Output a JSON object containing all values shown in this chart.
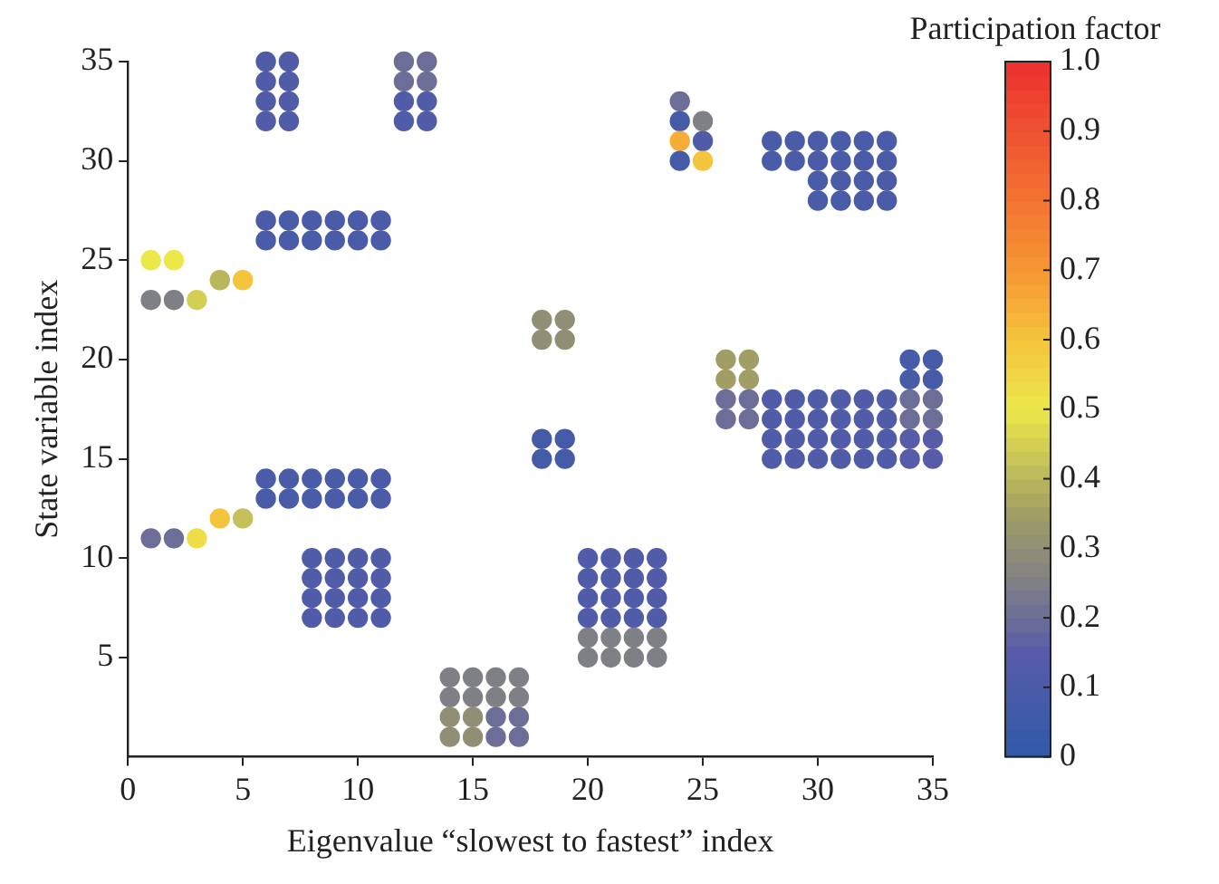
{
  "chart_data": {
    "type": "scatter",
    "xlabel": "Eigenvalue “slowest to fastest” index",
    "ylabel": "State variable index",
    "clabel": "Participation factor",
    "xlim": [
      0,
      35
    ],
    "xticks": [
      0,
      5,
      10,
      15,
      20,
      25,
      30,
      35
    ],
    "ylim": [
      0,
      35
    ],
    "yticks": [
      5,
      10,
      15,
      20,
      25,
      30,
      35
    ],
    "clim": [
      0,
      1
    ],
    "cticks": [
      0,
      0.1,
      0.2,
      0.3,
      0.4,
      0.5,
      0.6,
      0.7,
      0.8,
      0.9,
      {
        "value": 1,
        "label": "1.0"
      }
    ],
    "marker": "circle",
    "series": [
      {
        "x": [
          1,
          2,
          1,
          2,
          3,
          4,
          5,
          6,
          7,
          6,
          7,
          6,
          7,
          6,
          7,
          12,
          13,
          12,
          13,
          12,
          13,
          12,
          13,
          6,
          7,
          8,
          9,
          10,
          11,
          6,
          7,
          8,
          9,
          10,
          11,
          1,
          2,
          3,
          4,
          5,
          6,
          7,
          8,
          9,
          10,
          11,
          6,
          7,
          8,
          9,
          10,
          11,
          8,
          9,
          10,
          11,
          8,
          9,
          10,
          11,
          8,
          9,
          10,
          11,
          8,
          9,
          10,
          11,
          14,
          15,
          16,
          17,
          14,
          15,
          16,
          17,
          14,
          15,
          16,
          17,
          14,
          15,
          16,
          17,
          18,
          19,
          18,
          19,
          18,
          19,
          18,
          19,
          20,
          21,
          22,
          23,
          20,
          21,
          22,
          23,
          20,
          21,
          22,
          23,
          20,
          21,
          22,
          23,
          20,
          21,
          22,
          23,
          20,
          21,
          22,
          23,
          24,
          24,
          25,
          24,
          25,
          24,
          25,
          28,
          29,
          30,
          31,
          32,
          33,
          28,
          29,
          30,
          31,
          32,
          33,
          30,
          31,
          32,
          33,
          30,
          31,
          32,
          33,
          26,
          27,
          34,
          35,
          26,
          27,
          34,
          35,
          26,
          27,
          28,
          29,
          30,
          31,
          32,
          33,
          34,
          35,
          26,
          27,
          28,
          29,
          30,
          31,
          32,
          33,
          34,
          35,
          28,
          29,
          30,
          31,
          32,
          33,
          34,
          35,
          28,
          29,
          30,
          31,
          32,
          33,
          34,
          35
        ],
        "values": [
          25,
          25,
          23,
          23,
          23,
          24,
          24,
          35,
          35,
          34,
          34,
          33,
          33,
          32,
          32,
          35,
          35,
          34,
          34,
          33,
          33,
          32,
          32,
          27,
          27,
          27,
          27,
          27,
          27,
          26,
          26,
          26,
          26,
          26,
          26,
          11,
          11,
          11,
          12,
          12,
          14,
          14,
          14,
          14,
          14,
          14,
          13,
          13,
          13,
          13,
          13,
          13,
          10,
          10,
          10,
          10,
          9,
          9,
          9,
          9,
          8,
          8,
          8,
          8,
          7,
          7,
          7,
          7,
          4,
          4,
          4,
          4,
          3,
          3,
          3,
          3,
          2,
          2,
          2,
          2,
          1,
          1,
          1,
          1,
          22,
          22,
          21,
          21,
          16,
          16,
          15,
          15,
          10,
          10,
          10,
          10,
          9,
          9,
          9,
          9,
          8,
          8,
          8,
          8,
          7,
          7,
          7,
          7,
          6,
          6,
          6,
          6,
          5,
          5,
          5,
          5,
          33,
          32,
          32,
          31,
          31,
          30,
          30,
          31,
          31,
          31,
          31,
          31,
          31,
          30,
          30,
          30,
          30,
          30,
          30,
          29,
          29,
          29,
          29,
          28,
          28,
          28,
          28,
          20,
          20,
          20,
          20,
          19,
          19,
          19,
          19,
          18,
          18,
          18,
          18,
          18,
          18,
          18,
          18,
          18,
          18,
          17,
          17,
          17,
          17,
          17,
          17,
          17,
          17,
          17,
          17,
          16,
          16,
          16,
          16,
          16,
          16,
          16,
          16,
          15,
          15,
          15,
          15,
          15,
          15,
          15,
          15
        ],
        "cvalues": [
          0.5,
          0.5,
          0.25,
          0.25,
          0.45,
          0.4,
          0.6,
          0.12,
          0.12,
          0.12,
          0.12,
          0.12,
          0.12,
          0.12,
          0.12,
          0.2,
          0.2,
          0.2,
          0.2,
          0.12,
          0.12,
          0.12,
          0.12,
          0.1,
          0.1,
          0.1,
          0.1,
          0.1,
          0.1,
          0.1,
          0.1,
          0.1,
          0.1,
          0.1,
          0.1,
          0.2,
          0.2,
          0.53,
          0.6,
          0.42,
          0.1,
          0.1,
          0.1,
          0.1,
          0.1,
          0.1,
          0.1,
          0.1,
          0.1,
          0.1,
          0.1,
          0.1,
          0.12,
          0.12,
          0.12,
          0.12,
          0.12,
          0.12,
          0.12,
          0.12,
          0.12,
          0.12,
          0.12,
          0.12,
          0.12,
          0.12,
          0.12,
          0.12,
          0.25,
          0.25,
          0.25,
          0.25,
          0.25,
          0.25,
          0.25,
          0.25,
          0.3,
          0.3,
          0.2,
          0.2,
          0.3,
          0.3,
          0.2,
          0.2,
          0.3,
          0.3,
          0.3,
          0.3,
          0.08,
          0.08,
          0.08,
          0.08,
          0.12,
          0.12,
          0.12,
          0.12,
          0.12,
          0.12,
          0.12,
          0.12,
          0.12,
          0.12,
          0.12,
          0.12,
          0.12,
          0.12,
          0.12,
          0.12,
          0.25,
          0.25,
          0.25,
          0.25,
          0.25,
          0.25,
          0.25,
          0.25,
          0.2,
          0.08,
          0.25,
          0.65,
          0.12,
          0.08,
          0.6,
          0.1,
          0.1,
          0.1,
          0.1,
          0.1,
          0.1,
          0.1,
          0.1,
          0.1,
          0.1,
          0.1,
          0.1,
          0.1,
          0.1,
          0.1,
          0.1,
          0.1,
          0.1,
          0.1,
          0.1,
          0.35,
          0.35,
          0.08,
          0.08,
          0.35,
          0.35,
          0.08,
          0.08,
          0.2,
          0.2,
          0.12,
          0.12,
          0.12,
          0.12,
          0.12,
          0.12,
          0.2,
          0.2,
          0.2,
          0.2,
          0.12,
          0.12,
          0.12,
          0.12,
          0.12,
          0.12,
          0.2,
          0.2,
          0.12,
          0.12,
          0.12,
          0.12,
          0.12,
          0.12,
          0.15,
          0.15,
          0.12,
          0.12,
          0.12,
          0.12,
          0.12,
          0.12,
          0.15,
          0.15
        ]
      }
    ]
  }
}
